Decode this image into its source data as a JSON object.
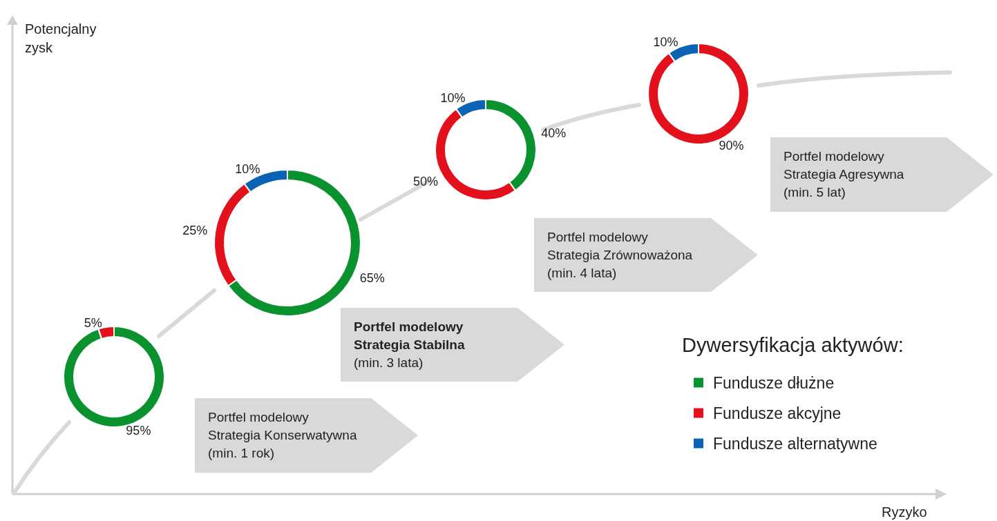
{
  "chart_data": {
    "type": "donut",
    "xlabel": "Ryzyko",
    "ylabel": "Potencjalny zysk",
    "legend": "bottom right",
    "legend_title": "Dywersyfikacja aktywów:",
    "categories": [
      "Fundusze dłużne",
      "Fundusze akcyjne",
      "Fundusze alternatywne"
    ],
    "colors": [
      "#0a922f",
      "#e3111b",
      "#0b64b3"
    ],
    "series": [
      {
        "name": "Portfel modelowy\nStrategia Konserwatywna\n(min. 1 rok)",
        "values": [
          95,
          5,
          null
        ],
        "value_labels": [
          "95%",
          "5%",
          null
        ]
      },
      {
        "name": "Portfel modelowy\nStrategia Stabilna\n(min. 3 lata)",
        "values": [
          65,
          25,
          10
        ],
        "value_labels": [
          "65%",
          "25%",
          "10%"
        ]
      },
      {
        "name": "Portfel modelowy\nStrategia Zrównoważona\n(min. 4 lata)",
        "values": [
          40,
          50,
          10
        ],
        "value_labels": [
          "40%",
          "50%",
          "10%"
        ]
      },
      {
        "name": "Portfel modelowy\nStrategia Agresywna\n(min. 5 lat)",
        "values": [
          null,
          90,
          10
        ],
        "value_labels": [
          null,
          "90%",
          "10%"
        ]
      }
    ]
  }
}
